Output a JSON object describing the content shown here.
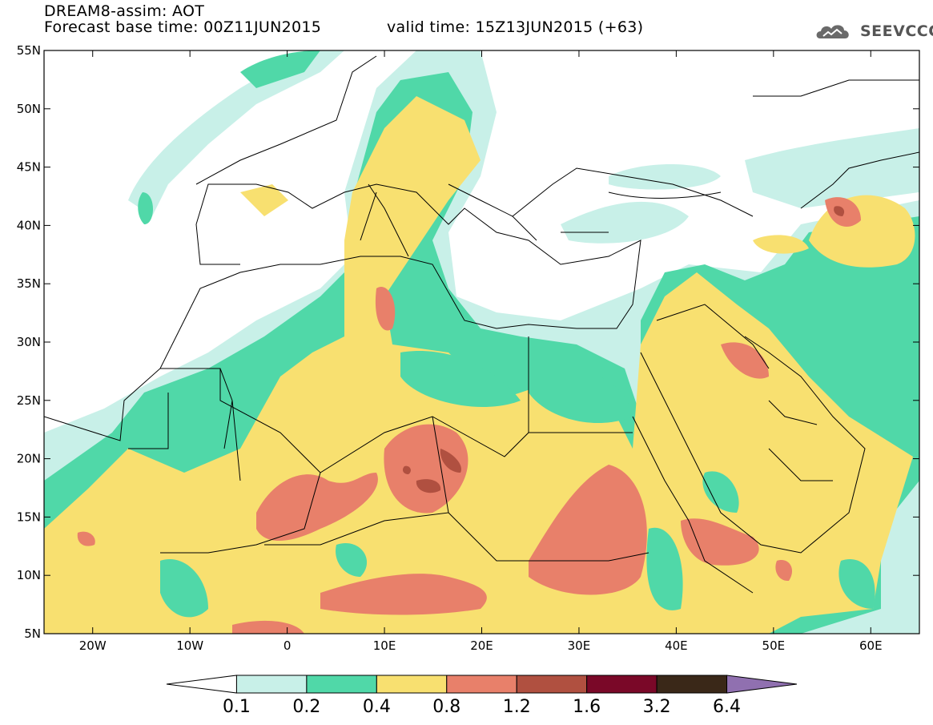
{
  "header": {
    "title": "DREAM8-assim: AOT",
    "base_time": "Forecast base time: 00Z11JUN2015",
    "valid_time": "valid time: 15Z13JUN2015 (+63)",
    "logo_text": "SEEVCCC"
  },
  "map": {
    "lon_range": [
      -25,
      65
    ],
    "lat_range": [
      5,
      55
    ],
    "lat_ticks": [
      {
        "value": 55,
        "label": "55N"
      },
      {
        "value": 50,
        "label": "50N"
      },
      {
        "value": 45,
        "label": "45N"
      },
      {
        "value": 40,
        "label": "40N"
      },
      {
        "value": 35,
        "label": "35N"
      },
      {
        "value": 30,
        "label": "30N"
      },
      {
        "value": 25,
        "label": "25N"
      },
      {
        "value": 20,
        "label": "20N"
      },
      {
        "value": 15,
        "label": "15N"
      },
      {
        "value": 10,
        "label": "10N"
      },
      {
        "value": 5,
        "label": "5N"
      }
    ],
    "lon_ticks": [
      {
        "value": -20,
        "label": "20W"
      },
      {
        "value": -10,
        "label": "10W"
      },
      {
        "value": 0,
        "label": "0"
      },
      {
        "value": 10,
        "label": "10E"
      },
      {
        "value": 20,
        "label": "20E"
      },
      {
        "value": 30,
        "label": "30E"
      },
      {
        "value": 40,
        "label": "40E"
      },
      {
        "value": 50,
        "label": "50E"
      },
      {
        "value": 60,
        "label": "60E"
      }
    ]
  },
  "colorbar": {
    "colors": [
      "#ffffff",
      "#c8f0e8",
      "#50d8a8",
      "#f8e070",
      "#e8806a",
      "#b05040",
      "#7a0828",
      "#3a2818",
      "#9070b0"
    ],
    "labels": [
      "0.1",
      "0.2",
      "0.4",
      "0.8",
      "1.2",
      "1.6",
      "3.2",
      "6.4"
    ]
  },
  "legend_colors": {
    "c1": "#c8f0e8",
    "c2": "#50d8a8",
    "c3": "#f8e070",
    "c4": "#e8806a",
    "c5": "#b05040"
  }
}
